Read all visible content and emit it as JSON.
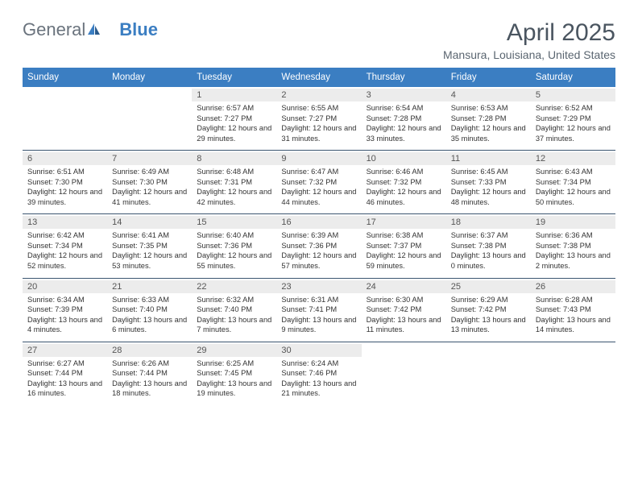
{
  "logo": {
    "part1": "General",
    "part2": "Blue"
  },
  "title": "April 2025",
  "location": "Mansura, Louisiana, United States",
  "colors": {
    "header_bg": "#3b7ec2",
    "text": "#333333",
    "logo_gray": "#6a737d",
    "logo_blue": "#3b7ec2",
    "daynum_bg": "#ececec",
    "border": "#3b5570"
  },
  "fonts": {
    "title_size": 30,
    "location_size": 14,
    "dayheader_size": 11.5,
    "body_size": 9.3
  },
  "dayNames": [
    "Sunday",
    "Monday",
    "Tuesday",
    "Wednesday",
    "Thursday",
    "Friday",
    "Saturday"
  ],
  "weeks": [
    [
      {
        "day": "",
        "sunrise": "",
        "sunset": "",
        "daylight": ""
      },
      {
        "day": "",
        "sunrise": "",
        "sunset": "",
        "daylight": ""
      },
      {
        "day": "1",
        "sunrise": "Sunrise: 6:57 AM",
        "sunset": "Sunset: 7:27 PM",
        "daylight": "Daylight: 12 hours and 29 minutes."
      },
      {
        "day": "2",
        "sunrise": "Sunrise: 6:55 AM",
        "sunset": "Sunset: 7:27 PM",
        "daylight": "Daylight: 12 hours and 31 minutes."
      },
      {
        "day": "3",
        "sunrise": "Sunrise: 6:54 AM",
        "sunset": "Sunset: 7:28 PM",
        "daylight": "Daylight: 12 hours and 33 minutes."
      },
      {
        "day": "4",
        "sunrise": "Sunrise: 6:53 AM",
        "sunset": "Sunset: 7:28 PM",
        "daylight": "Daylight: 12 hours and 35 minutes."
      },
      {
        "day": "5",
        "sunrise": "Sunrise: 6:52 AM",
        "sunset": "Sunset: 7:29 PM",
        "daylight": "Daylight: 12 hours and 37 minutes."
      }
    ],
    [
      {
        "day": "6",
        "sunrise": "Sunrise: 6:51 AM",
        "sunset": "Sunset: 7:30 PM",
        "daylight": "Daylight: 12 hours and 39 minutes."
      },
      {
        "day": "7",
        "sunrise": "Sunrise: 6:49 AM",
        "sunset": "Sunset: 7:30 PM",
        "daylight": "Daylight: 12 hours and 41 minutes."
      },
      {
        "day": "8",
        "sunrise": "Sunrise: 6:48 AM",
        "sunset": "Sunset: 7:31 PM",
        "daylight": "Daylight: 12 hours and 42 minutes."
      },
      {
        "day": "9",
        "sunrise": "Sunrise: 6:47 AM",
        "sunset": "Sunset: 7:32 PM",
        "daylight": "Daylight: 12 hours and 44 minutes."
      },
      {
        "day": "10",
        "sunrise": "Sunrise: 6:46 AM",
        "sunset": "Sunset: 7:32 PM",
        "daylight": "Daylight: 12 hours and 46 minutes."
      },
      {
        "day": "11",
        "sunrise": "Sunrise: 6:45 AM",
        "sunset": "Sunset: 7:33 PM",
        "daylight": "Daylight: 12 hours and 48 minutes."
      },
      {
        "day": "12",
        "sunrise": "Sunrise: 6:43 AM",
        "sunset": "Sunset: 7:34 PM",
        "daylight": "Daylight: 12 hours and 50 minutes."
      }
    ],
    [
      {
        "day": "13",
        "sunrise": "Sunrise: 6:42 AM",
        "sunset": "Sunset: 7:34 PM",
        "daylight": "Daylight: 12 hours and 52 minutes."
      },
      {
        "day": "14",
        "sunrise": "Sunrise: 6:41 AM",
        "sunset": "Sunset: 7:35 PM",
        "daylight": "Daylight: 12 hours and 53 minutes."
      },
      {
        "day": "15",
        "sunrise": "Sunrise: 6:40 AM",
        "sunset": "Sunset: 7:36 PM",
        "daylight": "Daylight: 12 hours and 55 minutes."
      },
      {
        "day": "16",
        "sunrise": "Sunrise: 6:39 AM",
        "sunset": "Sunset: 7:36 PM",
        "daylight": "Daylight: 12 hours and 57 minutes."
      },
      {
        "day": "17",
        "sunrise": "Sunrise: 6:38 AM",
        "sunset": "Sunset: 7:37 PM",
        "daylight": "Daylight: 12 hours and 59 minutes."
      },
      {
        "day": "18",
        "sunrise": "Sunrise: 6:37 AM",
        "sunset": "Sunset: 7:38 PM",
        "daylight": "Daylight: 13 hours and 0 minutes."
      },
      {
        "day": "19",
        "sunrise": "Sunrise: 6:36 AM",
        "sunset": "Sunset: 7:38 PM",
        "daylight": "Daylight: 13 hours and 2 minutes."
      }
    ],
    [
      {
        "day": "20",
        "sunrise": "Sunrise: 6:34 AM",
        "sunset": "Sunset: 7:39 PM",
        "daylight": "Daylight: 13 hours and 4 minutes."
      },
      {
        "day": "21",
        "sunrise": "Sunrise: 6:33 AM",
        "sunset": "Sunset: 7:40 PM",
        "daylight": "Daylight: 13 hours and 6 minutes."
      },
      {
        "day": "22",
        "sunrise": "Sunrise: 6:32 AM",
        "sunset": "Sunset: 7:40 PM",
        "daylight": "Daylight: 13 hours and 7 minutes."
      },
      {
        "day": "23",
        "sunrise": "Sunrise: 6:31 AM",
        "sunset": "Sunset: 7:41 PM",
        "daylight": "Daylight: 13 hours and 9 minutes."
      },
      {
        "day": "24",
        "sunrise": "Sunrise: 6:30 AM",
        "sunset": "Sunset: 7:42 PM",
        "daylight": "Daylight: 13 hours and 11 minutes."
      },
      {
        "day": "25",
        "sunrise": "Sunrise: 6:29 AM",
        "sunset": "Sunset: 7:42 PM",
        "daylight": "Daylight: 13 hours and 13 minutes."
      },
      {
        "day": "26",
        "sunrise": "Sunrise: 6:28 AM",
        "sunset": "Sunset: 7:43 PM",
        "daylight": "Daylight: 13 hours and 14 minutes."
      }
    ],
    [
      {
        "day": "27",
        "sunrise": "Sunrise: 6:27 AM",
        "sunset": "Sunset: 7:44 PM",
        "daylight": "Daylight: 13 hours and 16 minutes."
      },
      {
        "day": "28",
        "sunrise": "Sunrise: 6:26 AM",
        "sunset": "Sunset: 7:44 PM",
        "daylight": "Daylight: 13 hours and 18 minutes."
      },
      {
        "day": "29",
        "sunrise": "Sunrise: 6:25 AM",
        "sunset": "Sunset: 7:45 PM",
        "daylight": "Daylight: 13 hours and 19 minutes."
      },
      {
        "day": "30",
        "sunrise": "Sunrise: 6:24 AM",
        "sunset": "Sunset: 7:46 PM",
        "daylight": "Daylight: 13 hours and 21 minutes."
      },
      {
        "day": "",
        "sunrise": "",
        "sunset": "",
        "daylight": ""
      },
      {
        "day": "",
        "sunrise": "",
        "sunset": "",
        "daylight": ""
      },
      {
        "day": "",
        "sunrise": "",
        "sunset": "",
        "daylight": ""
      }
    ]
  ]
}
